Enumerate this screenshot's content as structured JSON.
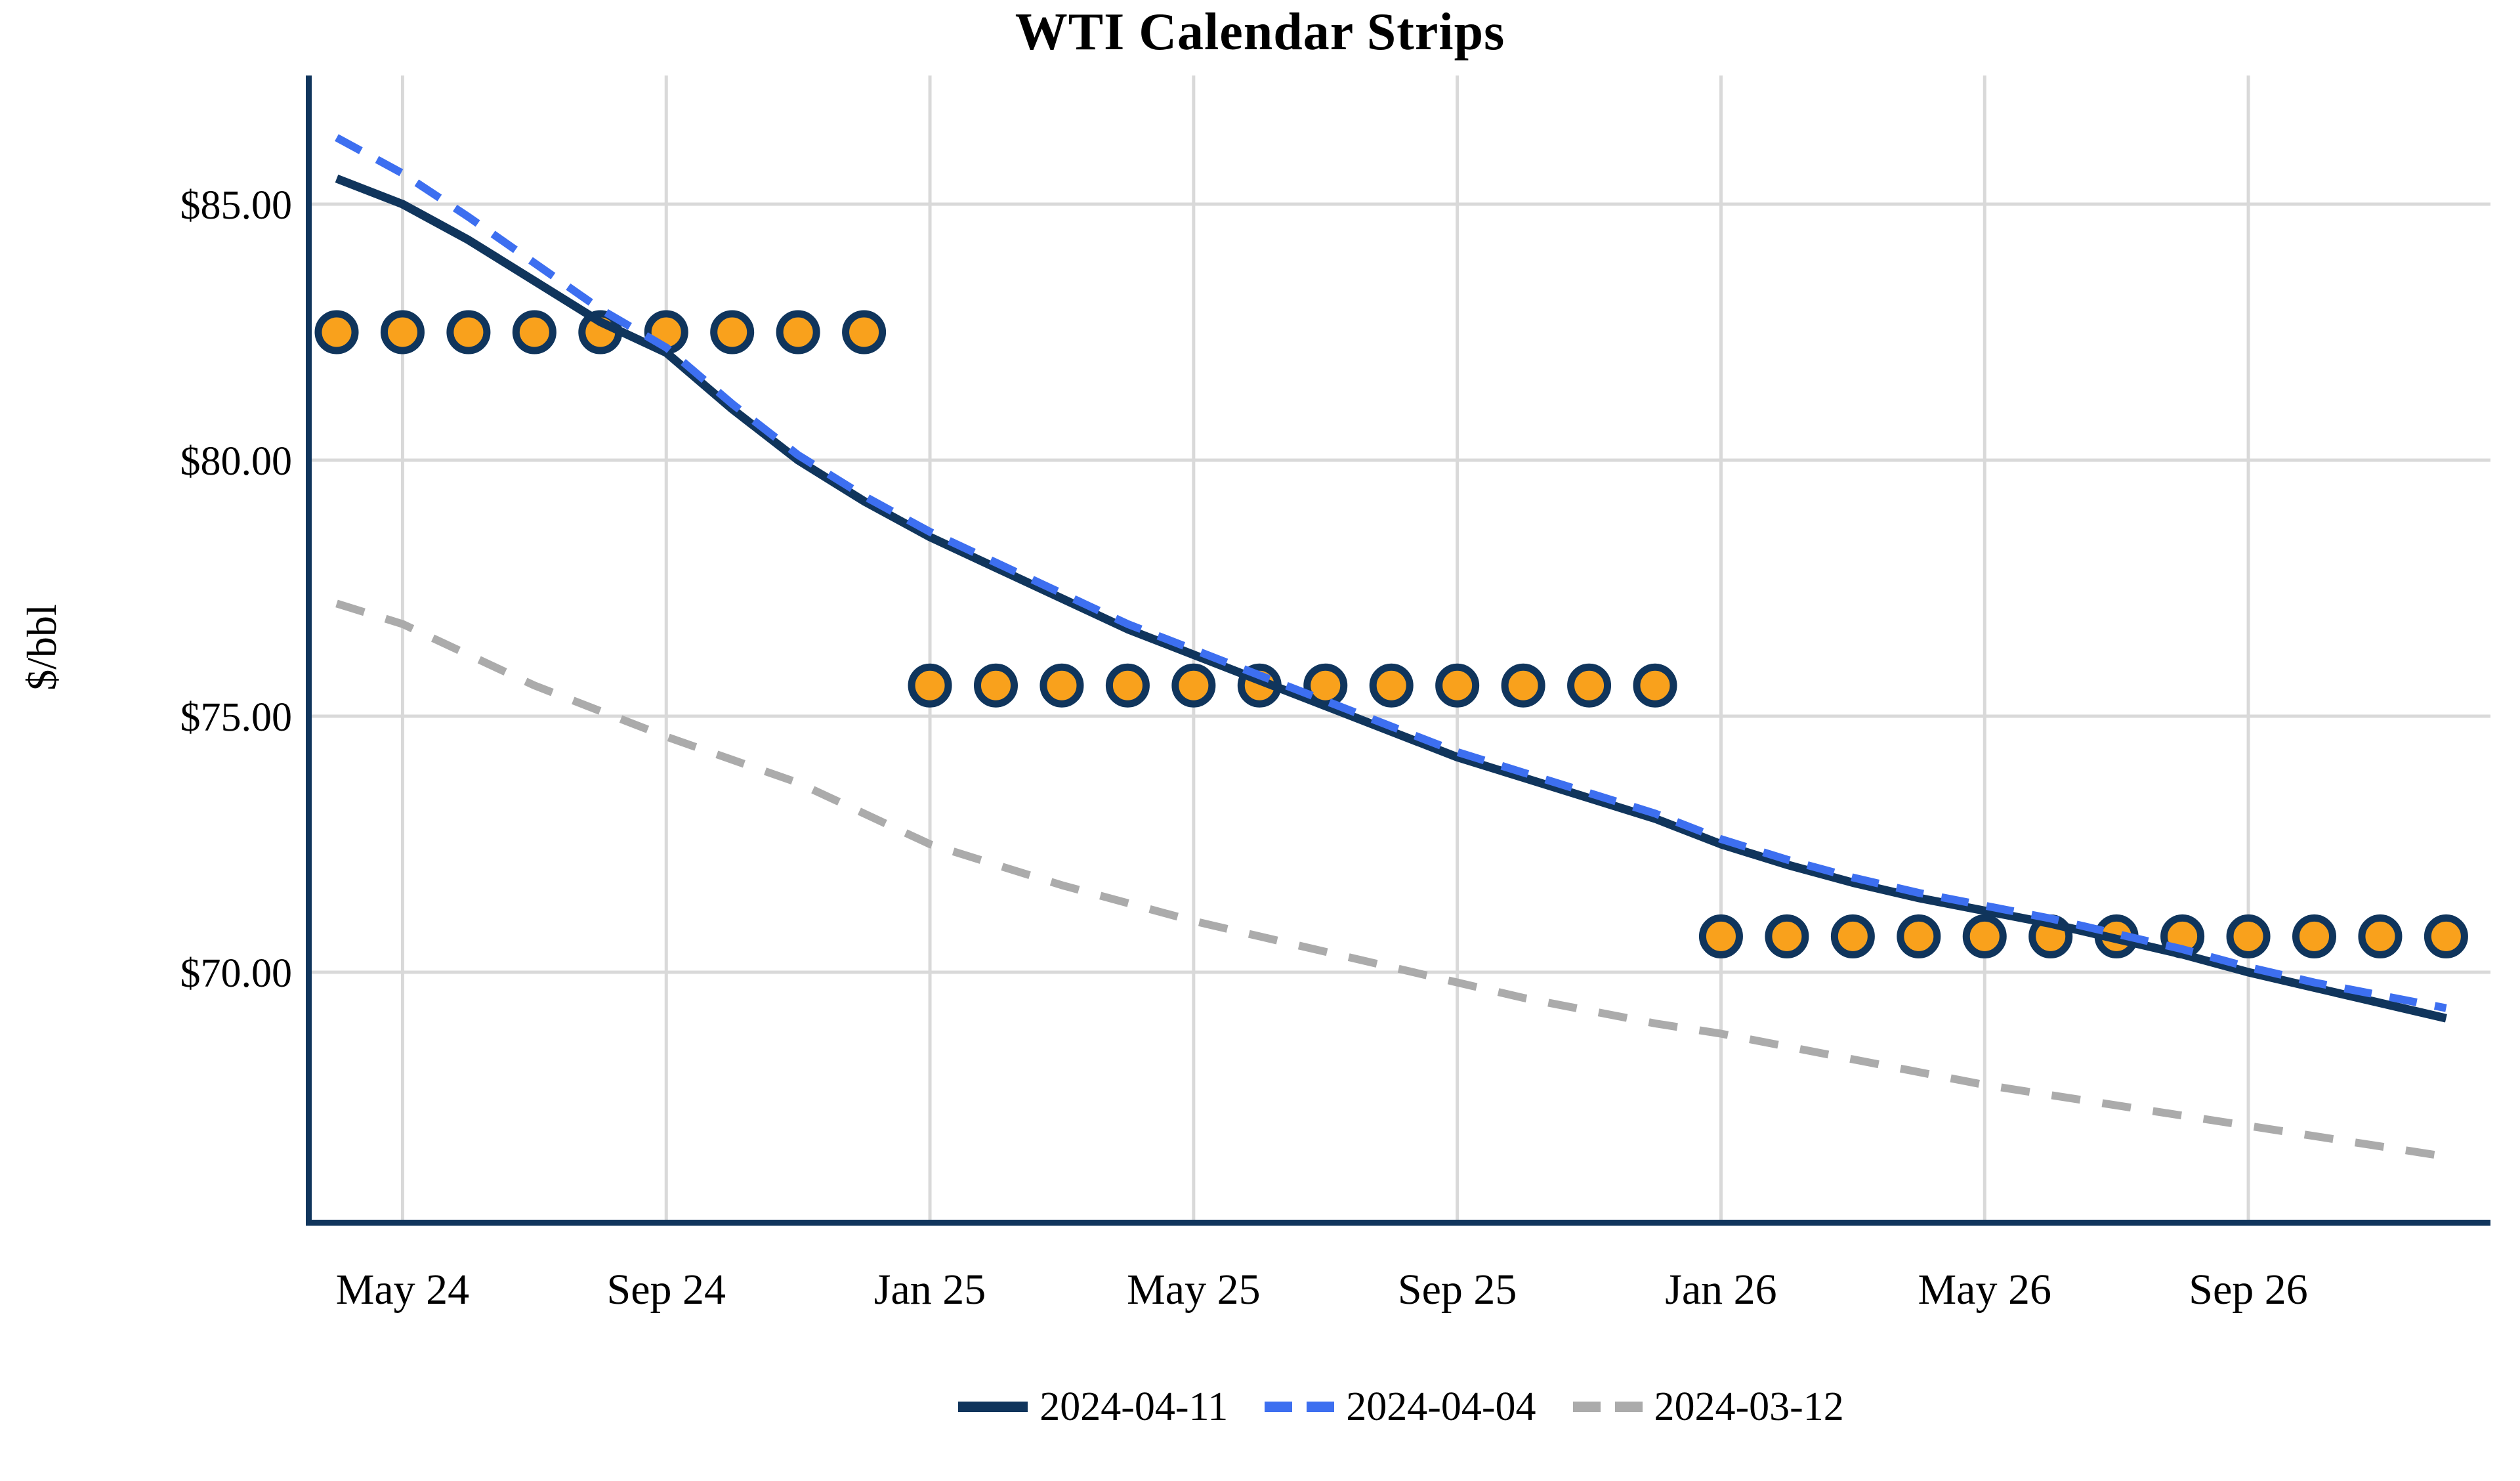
{
  "title": "WTI Calendar Strips",
  "chart_data": {
    "type": "line",
    "title": "WTI Calendar Strips",
    "xlabel": "",
    "ylabel": "$/bbl",
    "grid": true,
    "legend_position": "bottom",
    "ylim": [
      65.2,
      87.5
    ],
    "y_ticks": [
      {
        "label": "$85.00",
        "value": 85
      },
      {
        "label": "$80.00",
        "value": 80
      },
      {
        "label": "$75.00",
        "value": 75
      },
      {
        "label": "$70.00",
        "value": 70
      }
    ],
    "months": [
      "Apr 24",
      "May 24",
      "Jun 24",
      "Jul 24",
      "Aug 24",
      "Sep 24",
      "Oct 24",
      "Nov 24",
      "Dec 24",
      "Jan 25",
      "Feb 25",
      "Mar 25",
      "Apr 25",
      "May 25",
      "Jun 25",
      "Jul 25",
      "Aug 25",
      "Sep 25",
      "Oct 25",
      "Nov 25",
      "Dec 25",
      "Jan 26",
      "Feb 26",
      "Mar 26",
      "Apr 26",
      "May 26",
      "Jun 26",
      "Jul 26",
      "Aug 26",
      "Sep 26",
      "Oct 26",
      "Nov 26",
      "Dec 26"
    ],
    "x_tick_labels": [
      "May 24",
      "Sep 24",
      "Jan 25",
      "May 25",
      "Sep 25",
      "Jan 26",
      "May 26",
      "Sep 26"
    ],
    "x_tick_month_index": [
      1,
      5,
      9,
      13,
      17,
      21,
      25,
      29
    ],
    "series": [
      {
        "name": "2024-03-12",
        "style": "dashed",
        "color": "#ABABAB",
        "width": 12,
        "dash": [
          44,
          34
        ],
        "values": [
          77.2,
          76.8,
          76.2,
          75.6,
          75.1,
          74.6,
          74.15,
          73.7,
          73.1,
          72.5,
          72.1,
          71.7,
          71.35,
          71.0,
          70.7,
          70.4,
          70.1,
          69.8,
          69.5,
          69.25,
          69.0,
          68.8,
          68.55,
          68.3,
          68.05,
          67.8,
          67.6,
          67.4,
          67.2,
          67.0,
          66.8,
          66.6,
          66.4
        ]
      },
      {
        "name": "2024-04-11",
        "style": "solid",
        "color": "#10355C",
        "width": 13,
        "dash": null,
        "values": [
          85.5,
          85.0,
          84.3,
          83.5,
          82.7,
          82.1,
          81.0,
          80.0,
          79.2,
          78.5,
          77.9,
          77.3,
          76.7,
          76.2,
          75.7,
          75.2,
          74.7,
          74.2,
          73.8,
          73.4,
          73.0,
          72.5,
          72.1,
          71.75,
          71.45,
          71.2,
          70.95,
          70.65,
          70.35,
          70.0,
          69.7,
          69.4,
          69.1
        ]
      },
      {
        "name": "2024-04-04",
        "style": "dashed",
        "color": "#3D6FF0",
        "width": 12,
        "dash": [
          42,
          28
        ],
        "values": [
          86.3,
          85.6,
          84.75,
          83.85,
          82.95,
          82.2,
          81.1,
          80.1,
          79.3,
          78.6,
          78.0,
          77.4,
          76.8,
          76.3,
          75.8,
          75.3,
          74.8,
          74.3,
          73.9,
          73.5,
          73.1,
          72.6,
          72.2,
          71.85,
          71.55,
          71.3,
          71.05,
          70.75,
          70.45,
          70.1,
          69.8,
          69.55,
          69.3
        ]
      }
    ],
    "strips": [
      {
        "value": 82.5,
        "from": "Apr 24",
        "to": "Dec 24",
        "from_index": 0,
        "to_index": 8
      },
      {
        "value": 75.6,
        "from": "Jan 25",
        "to": "Dec 25",
        "from_index": 9,
        "to_index": 20
      },
      {
        "value": 70.7,
        "from": "Jan 26",
        "to": "Dec 26",
        "from_index": 21,
        "to_index": 32
      }
    ],
    "marker": {
      "shape": "circle",
      "fill": "#F9A11C",
      "stroke": "#10355C",
      "radius": 28,
      "stroke_width": 11
    },
    "colors": {
      "grid": "#D9D9D9",
      "axis": "#10355C",
      "text": "#000000",
      "background": "#FFFFFF"
    }
  },
  "legend": {
    "items": [
      {
        "label": "2024-04-11"
      },
      {
        "label": "2024-04-04"
      },
      {
        "label": "2024-03-12"
      }
    ]
  }
}
